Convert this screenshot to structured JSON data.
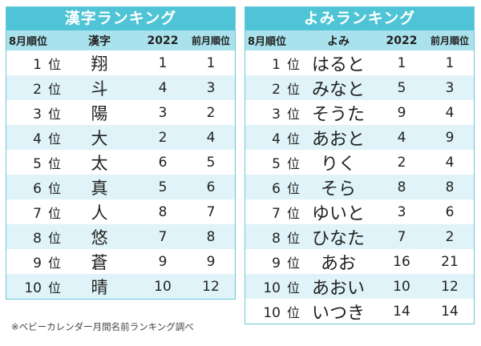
{
  "kanji_ranking": {
    "title": "漢字ランキング",
    "headers": {
      "rank": "8月順位",
      "name": "漢字",
      "y2022": "2022",
      "prev": "前月順位"
    },
    "rank_suffix": "位",
    "rows": [
      {
        "rank": "1",
        "name": "翔",
        "y2022": "1",
        "prev": "1"
      },
      {
        "rank": "2",
        "name": "斗",
        "y2022": "4",
        "prev": "3"
      },
      {
        "rank": "3",
        "name": "陽",
        "y2022": "3",
        "prev": "2"
      },
      {
        "rank": "4",
        "name": "大",
        "y2022": "2",
        "prev": "4"
      },
      {
        "rank": "5",
        "name": "太",
        "y2022": "6",
        "prev": "5"
      },
      {
        "rank": "6",
        "name": "真",
        "y2022": "5",
        "prev": "6"
      },
      {
        "rank": "7",
        "name": "人",
        "y2022": "8",
        "prev": "7"
      },
      {
        "rank": "8",
        "name": "悠",
        "y2022": "7",
        "prev": "8"
      },
      {
        "rank": "9",
        "name": "蒼",
        "y2022": "9",
        "prev": "9"
      },
      {
        "rank": "10",
        "name": "晴",
        "y2022": "10",
        "prev": "12"
      }
    ]
  },
  "yomi_ranking": {
    "title": "よみランキング",
    "headers": {
      "rank": "8月順位",
      "name": "よみ",
      "y2022": "2022",
      "prev": "前月順位"
    },
    "rank_suffix": "位",
    "rows": [
      {
        "rank": "1",
        "name": "はると",
        "y2022": "1",
        "prev": "1"
      },
      {
        "rank": "2",
        "name": "みなと",
        "y2022": "5",
        "prev": "3"
      },
      {
        "rank": "3",
        "name": "そうた",
        "y2022": "9",
        "prev": "4"
      },
      {
        "rank": "4",
        "name": "あおと",
        "y2022": "4",
        "prev": "9"
      },
      {
        "rank": "5",
        "name": "りく",
        "y2022": "2",
        "prev": "4"
      },
      {
        "rank": "6",
        "name": "そら",
        "y2022": "8",
        "prev": "8"
      },
      {
        "rank": "7",
        "name": "ゆいと",
        "y2022": "3",
        "prev": "6"
      },
      {
        "rank": "8",
        "name": "ひなた",
        "y2022": "7",
        "prev": "2"
      },
      {
        "rank": "9",
        "name": "あお",
        "y2022": "16",
        "prev": "21"
      },
      {
        "rank": "10",
        "name": "あおい",
        "y2022": "10",
        "prev": "12"
      },
      {
        "rank": "10",
        "name": "いつき",
        "y2022": "14",
        "prev": "14"
      }
    ]
  },
  "footnote": "※ベビーカレンダー月間名前ランキング調べ",
  "colors": {
    "title_bg": "#4fc4d6",
    "header_bg": "#a9e2ec",
    "alt_row_bg": "#dff3f8",
    "border": "#6cc6d6"
  }
}
